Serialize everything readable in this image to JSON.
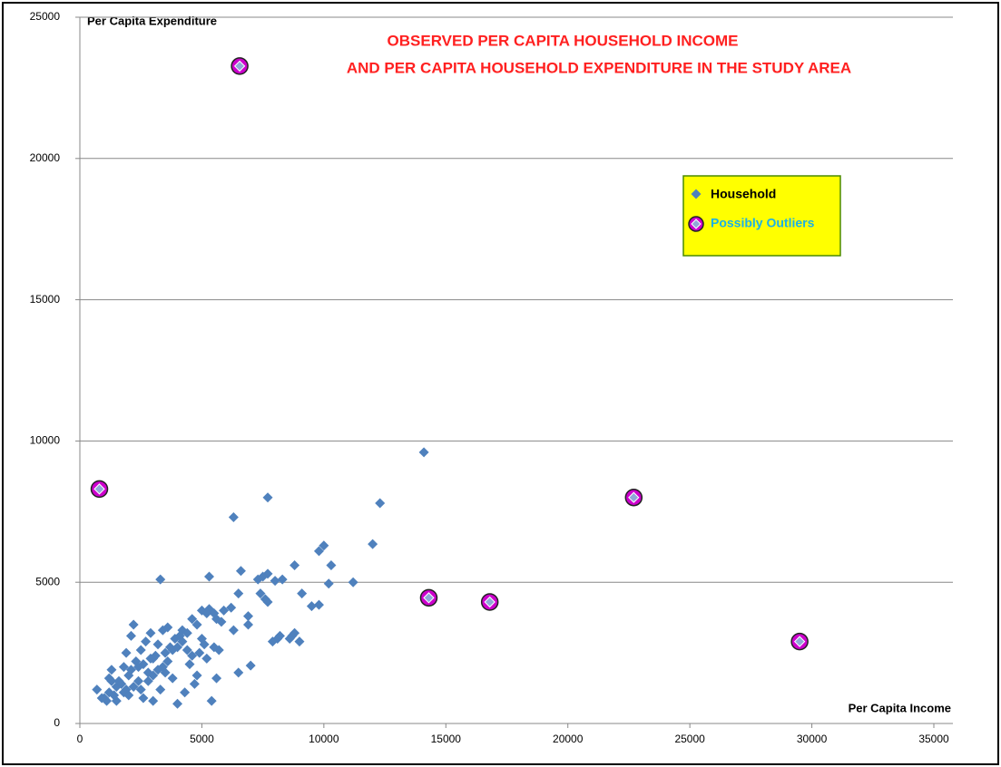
{
  "chart_data": {
    "type": "scatter",
    "title": [
      "OBSERVED PER CAPITA HOUSEHOLD INCOME",
      "AND PER CAPITA HOUSEHOLD EXPENDITURE IN THE STUDY AREA"
    ],
    "x_label": "Per Capita Income",
    "y_label": "Per Capita Expenditure",
    "xlim": [
      0,
      35000
    ],
    "ylim": [
      0,
      25000
    ],
    "xticks": [
      0,
      5000,
      10000,
      15000,
      20000,
      25000,
      30000,
      35000
    ],
    "yticks": [
      0,
      5000,
      10000,
      15000,
      20000,
      25000
    ],
    "grid": true,
    "legend": "upper right",
    "series": [
      {
        "name": "Household",
        "color": "#4f81bd",
        "x": [
          14100,
          12300,
          7700,
          6300,
          12000,
          10000,
          9800,
          10300,
          8800,
          11200,
          10200,
          5300,
          3300,
          6600,
          7700,
          7500,
          8300,
          8000,
          7300,
          9100,
          9500,
          9800,
          7400,
          7600,
          7700,
          6500,
          6200,
          5900,
          5600,
          5800,
          5000,
          5300,
          5500,
          6900,
          6900,
          6300,
          8200,
          8100,
          7900,
          8700,
          8800,
          9000,
          8600,
          7000,
          6500,
          5700,
          5500,
          5200,
          5600,
          5400,
          4800,
          4700,
          4500,
          4300,
          4000,
          3800,
          3500,
          3300,
          3000,
          2600,
          2200,
          2100,
          700,
          1000,
          1200,
          1300,
          1500,
          1600,
          1800,
          1900,
          2000,
          2300,
          2400,
          2500,
          2700,
          2800,
          2900,
          3100,
          3200,
          3400,
          3600,
          3700,
          3900,
          4100,
          4200,
          4400,
          4600,
          4900,
          5100,
          1100,
          1400,
          1700,
          2100,
          2600,
          3000,
          3400,
          3800,
          4200,
          4600,
          5000,
          1200,
          1800,
          2200,
          2800,
          3200,
          3600,
          4000,
          4400,
          4800,
          5200,
          1500,
          2000,
          2500,
          3000,
          3500,
          900,
          1300,
          1900,
          2400,
          2900
        ],
        "y": [
          9600,
          7800,
          8000,
          7300,
          6350,
          6300,
          6100,
          5600,
          5600,
          5000,
          4950,
          5200,
          5100,
          5400,
          5300,
          5200,
          5100,
          5050,
          5100,
          4600,
          4150,
          4200,
          4600,
          4400,
          4300,
          4600,
          4100,
          4000,
          3700,
          3600,
          4000,
          4050,
          3900,
          3800,
          3500,
          3300,
          3100,
          3000,
          2900,
          3100,
          3200,
          2900,
          3000,
          2050,
          1800,
          2600,
          2700,
          2300,
          1600,
          800,
          1700,
          1400,
          2100,
          1100,
          700,
          1600,
          1800,
          1200,
          800,
          900,
          3500,
          3100,
          1200,
          900,
          1100,
          1900,
          1300,
          1500,
          2000,
          1200,
          1700,
          2200,
          1500,
          2600,
          2900,
          1800,
          3200,
          2400,
          2800,
          3300,
          3400,
          2700,
          3000,
          3100,
          2900,
          2600,
          3700,
          2500,
          2800,
          800,
          1000,
          1400,
          1900,
          2100,
          2300,
          2000,
          2600,
          3300,
          2400,
          3000,
          1600,
          1100,
          1300,
          1500,
          1900,
          2200,
          2700,
          3200,
          3500,
          3900,
          800,
          1000,
          1200,
          1700,
          2500,
          900,
          1500,
          2500,
          2000,
          2300
        ]
      },
      {
        "name": "Possibly Outliers",
        "color": "#cc00cc",
        "x": [
          6550,
          800,
          14300,
          16800,
          22700,
          29500
        ],
        "y": [
          23270,
          8300,
          4450,
          4300,
          8000,
          2900
        ]
      }
    ]
  }
}
